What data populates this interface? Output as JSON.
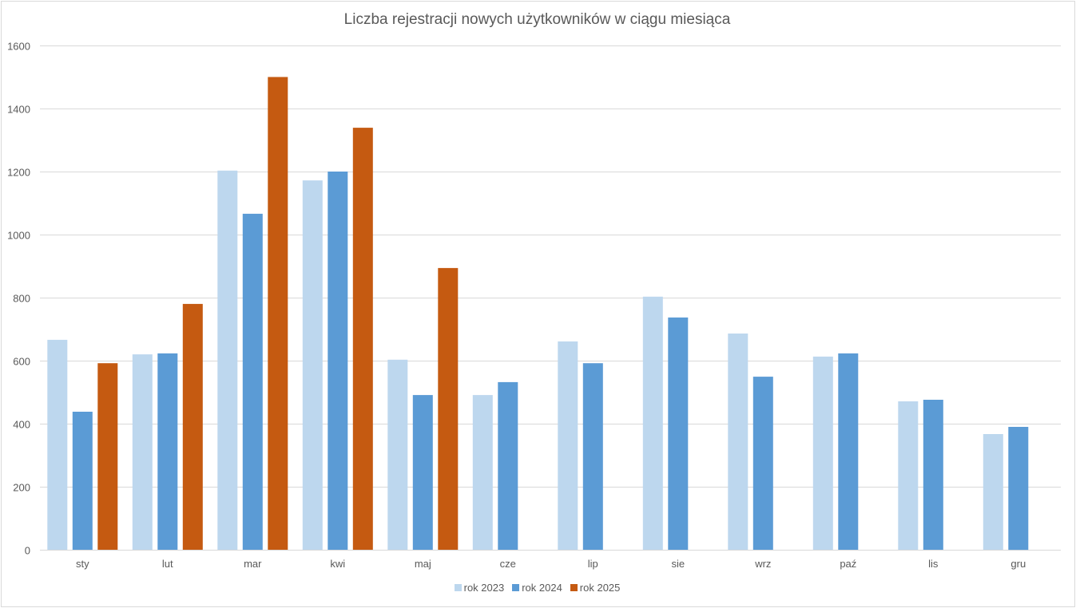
{
  "chart_data": {
    "type": "bar",
    "title": "Liczba rejestracji nowych użytkowników w ciągu miesiąca",
    "xlabel": "",
    "ylabel": "",
    "categories": [
      "sty",
      "lut",
      "mar",
      "kwi",
      "maj",
      "cze",
      "lip",
      "sie",
      "wrz",
      "paź",
      "lis",
      "gru"
    ],
    "series": [
      {
        "name": "rok 2023",
        "color": "#BDD7EE",
        "values": [
          666,
          620,
          1203,
          1172,
          603,
          491,
          661,
          803,
          686,
          613,
          471,
          367
        ]
      },
      {
        "name": "rok 2024",
        "color": "#5B9BD5",
        "values": [
          438,
          623,
          1066,
          1200,
          491,
          532,
          592,
          737,
          549,
          623,
          476,
          390
        ]
      },
      {
        "name": "rok 2025",
        "color": "#C55A11",
        "values": [
          592,
          780,
          1500,
          1339,
          894,
          null,
          null,
          null,
          null,
          null,
          null,
          null
        ]
      }
    ],
    "ylim": [
      0,
      1600
    ],
    "yticks": [
      0,
      200,
      400,
      600,
      800,
      1000,
      1200,
      1400,
      1600
    ],
    "grid": true,
    "legend_position": "bottom"
  }
}
